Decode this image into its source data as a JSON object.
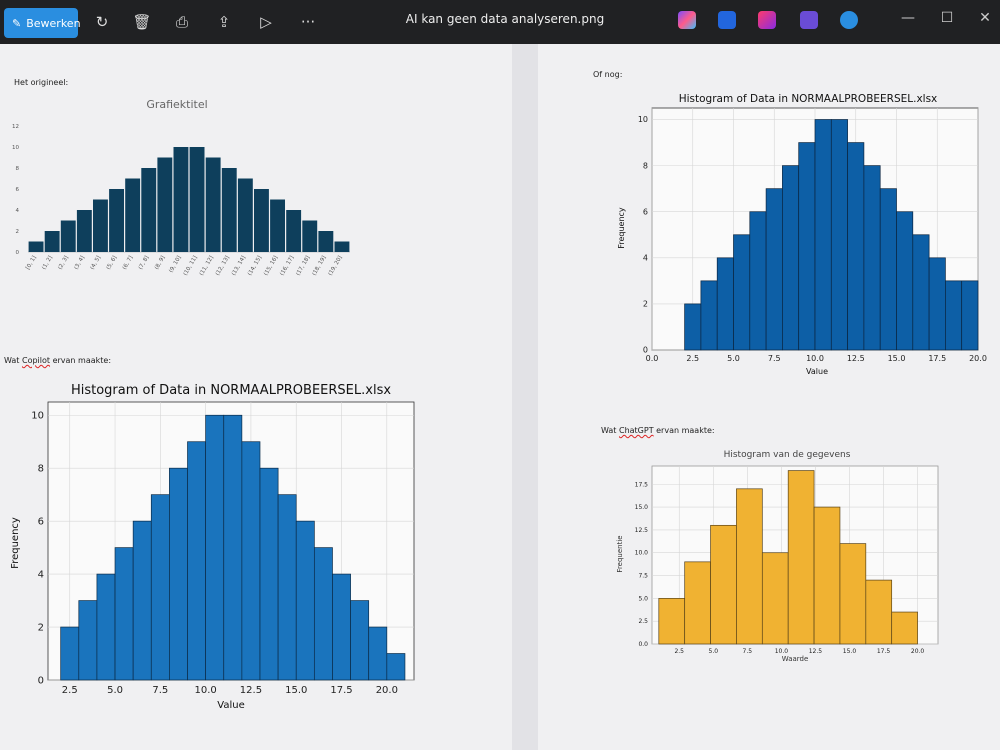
{
  "titlebar": {
    "edit_label": "Bewerken",
    "file_name": "AI kan geen data analyseren.png",
    "icons": [
      "edit-icon",
      "rotate-icon",
      "delete-icon",
      "print-icon",
      "share-icon",
      "slideshow-icon",
      "more-icon"
    ],
    "app_icons": [
      "copilot-app-icon",
      "designer-app-icon",
      "clipchamp-app-icon",
      "teams-app-icon",
      "onedrive-app-icon"
    ]
  },
  "sections": {
    "original": "Het origineel:",
    "copilot_prefix": "Wat ",
    "copilot_word": "Copilot",
    "copilot_suffix": " ervan maakte:",
    "or_else": "Of nog:",
    "chatgpt_prefix": "Wat ",
    "chatgpt_word": "ChatGPT",
    "chatgpt_suffix": " ervan maakte:"
  },
  "chart_data": [
    {
      "type": "bar",
      "title": "Grafiektitel",
      "categories": [
        "[0, 1]",
        "(1, 2]",
        "(2, 3]",
        "(3, 4]",
        "(4, 5]",
        "(5, 6]",
        "(6, 7]",
        "(7, 8]",
        "(8, 9]",
        "(9, 10]",
        "(10, 11]",
        "(11, 12]",
        "(12, 13]",
        "(13, 14]",
        "(14, 15]",
        "(15, 16]",
        "(16, 17]",
        "(17, 18]",
        "(18, 19]",
        "(19, 20]"
      ],
      "values": [
        1,
        2,
        3,
        4,
        5,
        6,
        7,
        8,
        9,
        10,
        10,
        9,
        8,
        7,
        6,
        5,
        4,
        3,
        2,
        1
      ],
      "ylim": [
        0,
        12
      ],
      "yticks": [
        0,
        2,
        4,
        6,
        8,
        10,
        12
      ],
      "color": "#0e3f5c"
    },
    {
      "type": "bar",
      "title": "Histogram of Data in NORMAALPROBEERSEL.xlsx",
      "xlabel": "Value",
      "ylabel": "Frequency",
      "bin_start": 2.0,
      "bin_width": 1.0,
      "values": [
        2,
        3,
        4,
        5,
        6,
        7,
        8,
        9,
        10,
        10,
        9,
        8,
        7,
        6,
        5,
        4,
        3,
        2,
        1
      ],
      "xlim": [
        1.3,
        21.5
      ],
      "ylim": [
        0,
        10.5
      ],
      "xticks": [
        2.5,
        5.0,
        7.5,
        10.0,
        12.5,
        15.0,
        17.5,
        20.0
      ],
      "yticks": [
        0,
        2,
        4,
        6,
        8,
        10
      ],
      "grid": true,
      "color": "#1a74bd"
    },
    {
      "type": "bar",
      "title": "Histogram of Data in NORMAALPROBEERSEL.xlsx",
      "xlabel": "Value",
      "ylabel": "Frequency",
      "bin_start": 2.0,
      "bin_width": 1.0,
      "values": [
        2,
        3,
        4,
        5,
        6,
        7,
        8,
        9,
        10,
        10,
        9,
        8,
        7,
        6,
        5,
        4,
        3,
        3
      ],
      "xlim": [
        0.0,
        20.0
      ],
      "ylim": [
        0,
        10.5
      ],
      "xticks": [
        0.0,
        2.5,
        5.0,
        7.5,
        10.0,
        12.5,
        15.0,
        17.5,
        20.0
      ],
      "yticks": [
        0,
        2,
        4,
        6,
        8,
        10
      ],
      "grid": true,
      "color": "#0d5fa6"
    },
    {
      "type": "bar",
      "title": "Histogram van de gegevens",
      "xlabel": "Waarde",
      "ylabel": "Frequentie",
      "bin_start": 1.0,
      "bin_width": 1.9,
      "values": [
        5,
        9,
        13,
        17,
        10,
        19,
        15,
        11,
        7,
        3.5
      ],
      "xlim": [
        0.5,
        21.5
      ],
      "ylim": [
        0,
        19.5
      ],
      "xticks": [
        2.5,
        5.0,
        7.5,
        10.0,
        12.5,
        15.0,
        17.5,
        20.0
      ],
      "yticks": [
        0.0,
        2.5,
        5.0,
        7.5,
        10.0,
        12.5,
        15.0,
        17.5
      ],
      "grid": true,
      "color": "#f0b232"
    }
  ]
}
